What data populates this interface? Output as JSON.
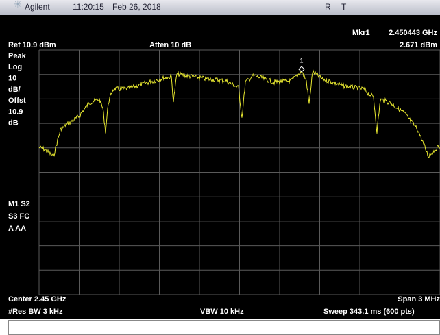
{
  "title_bar": {
    "brand": "Agilent",
    "time": "11:20:15",
    "date": "Feb 26, 2018",
    "status_r": "R",
    "status_t": "T"
  },
  "header": {
    "marker": "Mkr1",
    "marker_freq": "2.450443 GHz",
    "ref": "Ref 10.9 dBm",
    "atten": "Atten 10 dB",
    "marker_amp": "2.671 dBm"
  },
  "side_labels": [
    "Peak",
    "Log",
    "10",
    "dB/",
    "Offst",
    "10.9",
    "dB"
  ],
  "mode_labels": [
    "M1  S2",
    "S3  FC",
    "A   AA"
  ],
  "marker_label": "1",
  "footer": {
    "center": "Center 2.45 GHz",
    "span": "Span 3 MHz",
    "rbw": "#Res BW 3 kHz",
    "vbw": "VBW 10 kHz",
    "sweep": "Sweep 343.1 ms (600 pts)"
  }
}
